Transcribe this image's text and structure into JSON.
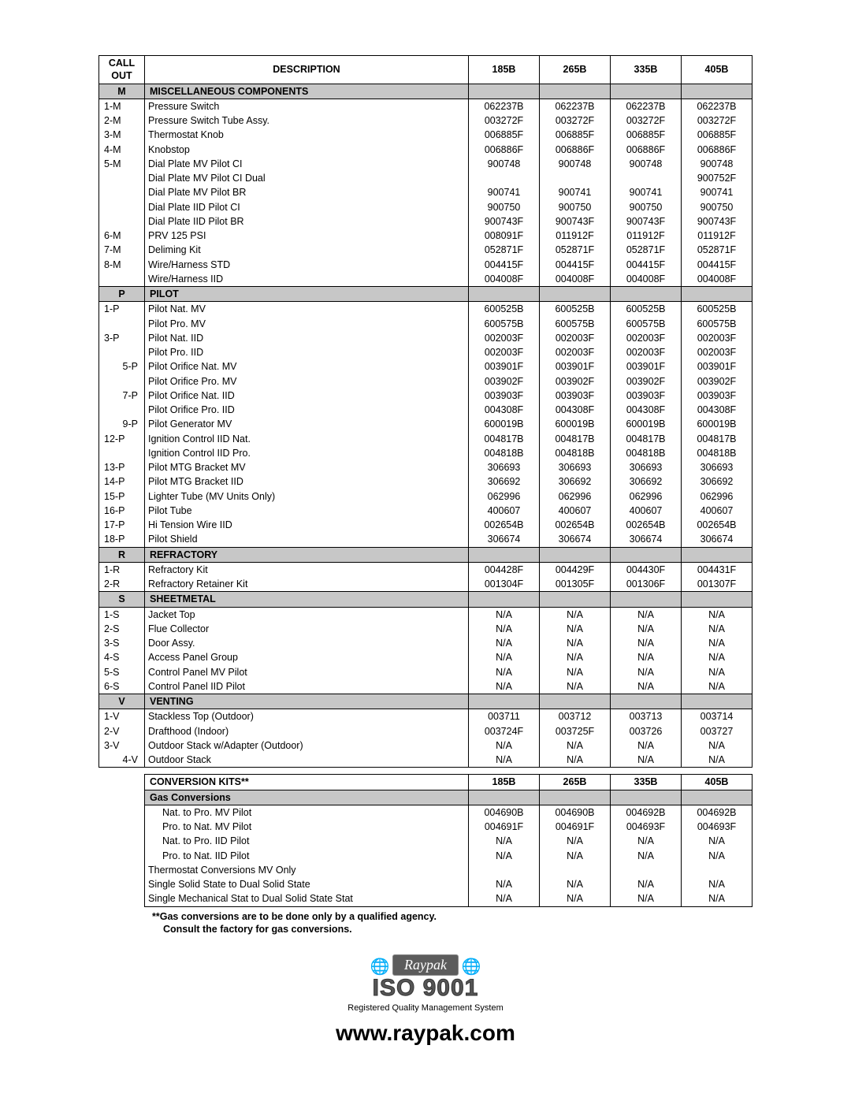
{
  "mainHeader": {
    "callout": [
      "CALL",
      "OUT"
    ],
    "desc": "DESCRIPTION",
    "cols": [
      "185B",
      "265B",
      "335B",
      "405B"
    ]
  },
  "sections": [
    {
      "code": "M",
      "title": "MISCELLANEOUS COMPONENTS",
      "rows": [
        {
          "c": "1-M",
          "a": "l",
          "d": "Pressure Switch",
          "v": [
            "062237B",
            "062237B",
            "062237B",
            "062237B"
          ]
        },
        {
          "c": "2-M",
          "a": "l",
          "d": "Pressure Switch Tube Assy.",
          "v": [
            "003272F",
            "003272F",
            "003272F",
            "003272F"
          ]
        },
        {
          "c": "3-M",
          "a": "l",
          "d": "Thermostat Knob",
          "v": [
            "006885F",
            "006885F",
            "006885F",
            "006885F"
          ]
        },
        {
          "c": "4-M",
          "a": "l",
          "d": "Knobstop",
          "v": [
            "006886F",
            "006886F",
            "006886F",
            "006886F"
          ]
        },
        {
          "c": "5-M",
          "a": "l",
          "d": "Dial Plate MV Pilot CI",
          "v": [
            "900748",
            "900748",
            "900748",
            "900748"
          ]
        },
        {
          "c": "",
          "a": "l",
          "d": "Dial Plate MV Pilot CI Dual",
          "v": [
            "",
            "",
            "",
            "900752F"
          ]
        },
        {
          "c": "",
          "a": "l",
          "d": "Dial Plate MV Pilot BR",
          "v": [
            "900741",
            "900741",
            "900741",
            "900741"
          ]
        },
        {
          "c": "",
          "a": "l",
          "d": "Dial Plate IID Pilot CI",
          "v": [
            "900750",
            "900750",
            "900750",
            "900750"
          ]
        },
        {
          "c": "",
          "a": "l",
          "d": "Dial Plate IID Pilot BR",
          "v": [
            "900743F",
            "900743F",
            "900743F",
            "900743F"
          ]
        },
        {
          "c": "6-M",
          "a": "l",
          "d": "PRV 125 PSI",
          "v": [
            "008091F",
            "011912F",
            "011912F",
            "011912F"
          ]
        },
        {
          "c": "7-M",
          "a": "l",
          "d": "Deliming Kit",
          "v": [
            "052871F",
            "052871F",
            "052871F",
            "052871F"
          ]
        },
        {
          "c": "8-M",
          "a": "l",
          "d": "Wire/Harness STD",
          "v": [
            "004415F",
            "004415F",
            "004415F",
            "004415F"
          ]
        },
        {
          "c": "",
          "a": "l",
          "d": "Wire/Harness IID",
          "v": [
            "004008F",
            "004008F",
            "004008F",
            "004008F"
          ]
        }
      ]
    },
    {
      "code": "P",
      "title": "PILOT",
      "rows": [
        {
          "c": "1-P",
          "a": "l",
          "d": "Pilot Nat. MV",
          "v": [
            "600525B",
            "600525B",
            "600525B",
            "600525B"
          ]
        },
        {
          "c": "",
          "a": "l",
          "d": "Pilot Pro. MV",
          "v": [
            "600575B",
            "600575B",
            "600575B",
            "600575B"
          ]
        },
        {
          "c": "3-P",
          "a": "l",
          "d": "Pilot Nat. IID",
          "v": [
            "002003F",
            "002003F",
            "002003F",
            "002003F"
          ]
        },
        {
          "c": "",
          "a": "l",
          "d": "Pilot Pro. IID",
          "v": [
            "002003F",
            "002003F",
            "002003F",
            "002003F"
          ]
        },
        {
          "c": "5-P",
          "a": "r",
          "d": "Pilot Orifice Nat. MV",
          "v": [
            "003901F",
            "003901F",
            "003901F",
            "003901F"
          ]
        },
        {
          "c": "",
          "a": "l",
          "d": "Pilot Orifice Pro. MV",
          "v": [
            "003902F",
            "003902F",
            "003902F",
            "003902F"
          ]
        },
        {
          "c": "7-P",
          "a": "r",
          "d": "Pilot Orifice Nat. IID",
          "v": [
            "003903F",
            "003903F",
            "003903F",
            "003903F"
          ]
        },
        {
          "c": "",
          "a": "l",
          "d": "Pilot Orifice Pro. IID",
          "v": [
            "004308F",
            "004308F",
            "004308F",
            "004308F"
          ]
        },
        {
          "c": "9-P",
          "a": "r",
          "d": "Pilot Generator MV",
          "v": [
            "600019B",
            "600019B",
            "600019B",
            "600019B"
          ]
        },
        {
          "c": "12-P",
          "a": "l",
          "d": "Ignition Control IID Nat.",
          "v": [
            "004817B",
            "004817B",
            "004817B",
            "004817B"
          ]
        },
        {
          "c": "",
          "a": "l",
          "d": "Ignition Control IID Pro.",
          "v": [
            "004818B",
            "004818B",
            "004818B",
            "004818B"
          ]
        },
        {
          "c": "13-P",
          "a": "l",
          "d": "Pilot MTG Bracket MV",
          "v": [
            "306693",
            "306693",
            "306693",
            "306693"
          ]
        },
        {
          "c": "14-P",
          "a": "l",
          "d": "Pilot MTG Bracket IID",
          "v": [
            "306692",
            "306692",
            "306692",
            "306692"
          ]
        },
        {
          "c": "15-P",
          "a": "l",
          "d": "Lighter Tube (MV Units Only)",
          "v": [
            "062996",
            "062996",
            "062996",
            "062996"
          ]
        },
        {
          "c": "16-P",
          "a": "l",
          "d": "Pilot Tube",
          "v": [
            "400607",
            "400607",
            "400607",
            "400607"
          ]
        },
        {
          "c": "17-P",
          "a": "l",
          "d": "Hi Tension Wire IID",
          "v": [
            "002654B",
            "002654B",
            "002654B",
            "002654B"
          ]
        },
        {
          "c": "18-P",
          "a": "l",
          "d": "Pilot Shield",
          "v": [
            "306674",
            "306674",
            "306674",
            "306674"
          ]
        }
      ]
    },
    {
      "code": "R",
      "title": "REFRACTORY",
      "rows": [
        {
          "c": "1-R",
          "a": "l",
          "d": "Refractory Kit",
          "v": [
            "004428F",
            "004429F",
            "004430F",
            "004431F"
          ]
        },
        {
          "c": "2-R",
          "a": "l",
          "d": "Refractory Retainer Kit",
          "v": [
            "001304F",
            "001305F",
            "001306F",
            "001307F"
          ]
        }
      ]
    },
    {
      "code": "S",
      "title": "SHEETMETAL",
      "rows": [
        {
          "c": "1-S",
          "a": "l",
          "d": "Jacket Top",
          "v": [
            "N/A",
            "N/A",
            "N/A",
            "N/A"
          ]
        },
        {
          "c": "2-S",
          "a": "l",
          "d": "Flue Collector",
          "v": [
            "N/A",
            "N/A",
            "N/A",
            "N/A"
          ]
        },
        {
          "c": "3-S",
          "a": "l",
          "d": "Door Assy.",
          "v": [
            "N/A",
            "N/A",
            "N/A",
            "N/A"
          ]
        },
        {
          "c": "4-S",
          "a": "l",
          "d": "Access Panel Group",
          "v": [
            "N/A",
            "N/A",
            "N/A",
            "N/A"
          ]
        },
        {
          "c": "5-S",
          "a": "l",
          "d": "Control Panel MV Pilot",
          "v": [
            "N/A",
            "N/A",
            "N/A",
            "N/A"
          ]
        },
        {
          "c": "6-S",
          "a": "l",
          "d": "Control Panel IID Pilot",
          "v": [
            "N/A",
            "N/A",
            "N/A",
            "N/A"
          ]
        }
      ]
    },
    {
      "code": "V",
      "title": "VENTING",
      "rows": [
        {
          "c": "1-V",
          "a": "l",
          "d": "Stackless Top (Outdoor)",
          "v": [
            "003711",
            "003712",
            "003713",
            "003714"
          ]
        },
        {
          "c": "2-V",
          "a": "l",
          "d": "Drafthood (Indoor)",
          "v": [
            "003724F",
            "003725F",
            "003726",
            "003727"
          ]
        },
        {
          "c": "3-V",
          "a": "l",
          "d": "Outdoor Stack w/Adapter (Outdoor)",
          "v": [
            "N/A",
            "N/A",
            "N/A",
            "N/A"
          ]
        },
        {
          "c": "4-V",
          "a": "r",
          "d": "Outdoor Stack",
          "v": [
            "N/A",
            "N/A",
            "N/A",
            "N/A"
          ]
        }
      ]
    }
  ],
  "conv": {
    "header": {
      "title": "CONVERSION KITS**",
      "cols": [
        "185B",
        "265B",
        "335B",
        "405B"
      ]
    },
    "section": "Gas Conversions",
    "rows": [
      {
        "d": "Nat. to Pro. MV Pilot",
        "i": true,
        "v": [
          "004690B",
          "004690B",
          "004692B",
          "004692B"
        ]
      },
      {
        "d": "Pro. to Nat. MV Pilot",
        "i": true,
        "v": [
          "004691F",
          "004691F",
          "004693F",
          "004693F"
        ]
      },
      {
        "d": "Nat. to Pro. IID Pilot",
        "i": true,
        "v": [
          "N/A",
          "N/A",
          "N/A",
          "N/A"
        ]
      },
      {
        "d": "Pro. to Nat. IID Pilot",
        "i": true,
        "v": [
          "N/A",
          "N/A",
          "N/A",
          "N/A"
        ]
      },
      {
        "d": "Thermostat Conversions MV Only",
        "i": false,
        "v": [
          "",
          "",
          "",
          ""
        ]
      },
      {
        "d": "Single Solid State to Dual Solid State",
        "i": false,
        "v": [
          "N/A",
          "N/A",
          "N/A",
          "N/A"
        ]
      },
      {
        "d": "Single Mechanical Stat to Dual Solid State Stat",
        "i": false,
        "v": [
          "N/A",
          "N/A",
          "N/A",
          "N/A"
        ]
      }
    ]
  },
  "footnotes": [
    "**Gas conversions are to be done only by a qualified agency.",
    "   Consult the factory for gas conversions."
  ],
  "logo": {
    "brand": "Raypak",
    "iso": "ISO 9001",
    "reg": "Registered Quality Management System",
    "url": "www.raypak.com"
  }
}
